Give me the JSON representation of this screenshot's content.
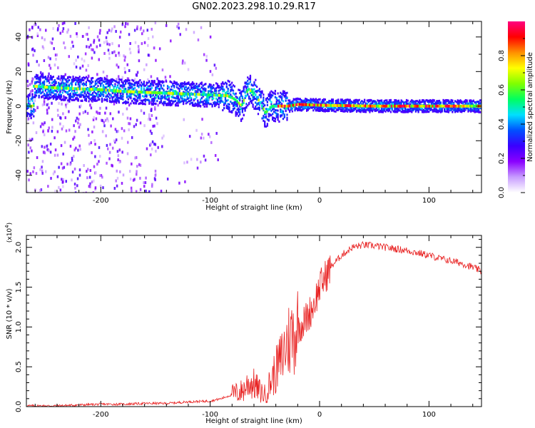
{
  "figure": {
    "title": "GN02.2023.298.10.29.R17"
  },
  "chart_data": [
    {
      "type": "heatmap",
      "name": "spectrogram",
      "xlabel": "Height of straight line (km)",
      "ylabel": "Frequency (Hz)",
      "xlim": [
        -268,
        148
      ],
      "ylim": [
        -50,
        49
      ],
      "x_ticks": [
        -200,
        -100,
        0,
        100
      ],
      "x_tick_labels": [
        "-200",
        "-100",
        "0",
        "100"
      ],
      "y_ticks": [
        -40,
        -20,
        0,
        20,
        40
      ],
      "y_tick_labels": [
        "-40",
        "-20",
        "0",
        "20",
        "40"
      ],
      "colorbar": {
        "label": "Normalized spectral amplitude",
        "range": [
          0,
          1
        ],
        "ticks": [
          0.0,
          0.2,
          0.4,
          0.6,
          0.8
        ],
        "tick_labels": [
          "0.0",
          "0.2",
          "0.4",
          "0.6",
          "0.8"
        ],
        "colormap": [
          "#ffffff",
          "#c79cff",
          "#8a00ff",
          "#3a00ff",
          "#0050ff",
          "#00e0ff",
          "#00ff60",
          "#80ff00",
          "#ffff00",
          "#ff9000",
          "#ff0000",
          "#ff0080"
        ]
      },
      "ridge": {
        "description_points": [
          {
            "x": -262,
            "y": 11.5
          },
          {
            "x": -240,
            "y": 10.5
          },
          {
            "x": -220,
            "y": 10
          },
          {
            "x": -200,
            "y": 9.5
          },
          {
            "x": -180,
            "y": 8.5
          },
          {
            "x": -160,
            "y": 8
          },
          {
            "x": -140,
            "y": 7.5
          },
          {
            "x": -120,
            "y": 7
          },
          {
            "x": -100,
            "y": 6.5
          },
          {
            "x": -85,
            "y": 6
          },
          {
            "x": -78,
            "y": 4
          },
          {
            "x": -72,
            "y": 0
          },
          {
            "x": -66,
            "y": 10
          },
          {
            "x": -60,
            "y": 7
          },
          {
            "x": -55,
            "y": 2
          },
          {
            "x": -50,
            "y": -4
          },
          {
            "x": -45,
            "y": 0
          },
          {
            "x": -40,
            "y": 0
          },
          {
            "x": -30,
            "y": 0
          },
          {
            "x": -20,
            "y": 1
          },
          {
            "x": 0,
            "y": 0.5
          },
          {
            "x": 50,
            "y": 0
          },
          {
            "x": 100,
            "y": 0
          },
          {
            "x": 148,
            "y": 0
          }
        ]
      }
    },
    {
      "type": "line",
      "name": "snr",
      "xlabel": "Height of straight line (km)",
      "ylabel": "SNR (10 * v/v)",
      "y_scale_note": "(x10",
      "y_scale_exp": "4",
      "y_scale_close": ")",
      "xlim": [
        -268,
        148
      ],
      "ylim": [
        0,
        2.15
      ],
      "x_ticks": [
        -200,
        -100,
        0,
        100
      ],
      "x_tick_labels": [
        "-200",
        "-100",
        "0",
        "100"
      ],
      "y_ticks": [
        0.0,
        0.5,
        1.0,
        1.5,
        2.0
      ],
      "y_tick_labels": [
        "0.0",
        "0.5",
        "1.0",
        "1.5",
        "2.0"
      ],
      "color": "#e82020",
      "series": [
        {
          "x": [
            -268,
            -240,
            -220,
            -200,
            -180,
            -160,
            -140,
            -120,
            -100,
            -90,
            -80,
            -70,
            -65,
            -60,
            -55,
            -50,
            -45,
            -40,
            -35,
            -30,
            -25,
            -20,
            -15,
            -10,
            -5,
            0,
            10,
            20,
            30,
            40,
            50,
            60,
            70,
            80,
            90,
            100,
            110,
            120,
            130,
            140,
            148
          ],
          "y": [
            0.01,
            0.01,
            0.02,
            0.03,
            0.03,
            0.04,
            0.04,
            0.06,
            0.07,
            0.1,
            0.15,
            0.2,
            0.3,
            0.28,
            0.2,
            0.15,
            0.3,
            0.45,
            0.6,
            0.8,
            0.9,
            1.0,
            1.05,
            1.15,
            1.3,
            1.5,
            1.75,
            1.9,
            2.0,
            2.03,
            2.02,
            2.0,
            1.98,
            1.96,
            1.93,
            1.9,
            1.86,
            1.83,
            1.8,
            1.75,
            1.7
          ]
        }
      ]
    }
  ]
}
